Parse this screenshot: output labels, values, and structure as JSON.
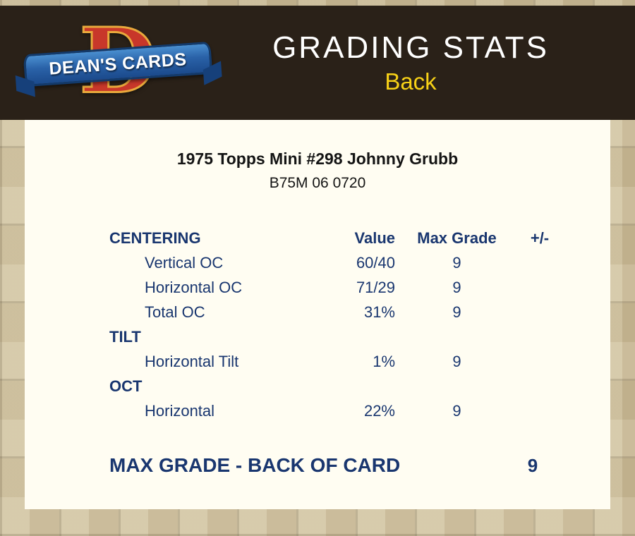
{
  "header": {
    "title": "GRADING STATS",
    "subtitle": "Back",
    "logo": {
      "letter": "D",
      "brand": "DEAN'S CARDS"
    }
  },
  "card": {
    "title": "1975 Topps Mini #298 Johnny Grubb",
    "code": "B75M 06 0720"
  },
  "table": {
    "columns": [
      "CENTERING",
      "Value",
      "Max Grade",
      "+/-"
    ],
    "sections": [
      {
        "header": "CENTERING",
        "rows": [
          {
            "label": "Vertical OC",
            "value": "60/40",
            "max_grade": "9",
            "plus_minus": ""
          },
          {
            "label": "Horizontal OC",
            "value": "71/29",
            "max_grade": "9",
            "plus_minus": ""
          },
          {
            "label": "Total OC",
            "value": "31%",
            "max_grade": "9",
            "plus_minus": ""
          }
        ]
      },
      {
        "header": "TILT",
        "rows": [
          {
            "label": "Horizontal Tilt",
            "value": "1%",
            "max_grade": "9",
            "plus_minus": ""
          }
        ]
      },
      {
        "header": "OCT",
        "rows": [
          {
            "label": "Horizontal",
            "value": "22%",
            "max_grade": "9",
            "plus_minus": ""
          }
        ]
      }
    ]
  },
  "footer": {
    "label": "MAX GRADE - BACK OF CARD",
    "value": "9"
  },
  "colors": {
    "navy_text": "#19366f",
    "header_bg": "#2a2118",
    "subtitle_yellow": "#f7d117",
    "logo_red": "#c8372a",
    "logo_gold": "#e8a93c",
    "ribbon_blue": "#2a62a8",
    "panel_bg": "#fffdf2",
    "page_bg": "#cdbf9c"
  }
}
